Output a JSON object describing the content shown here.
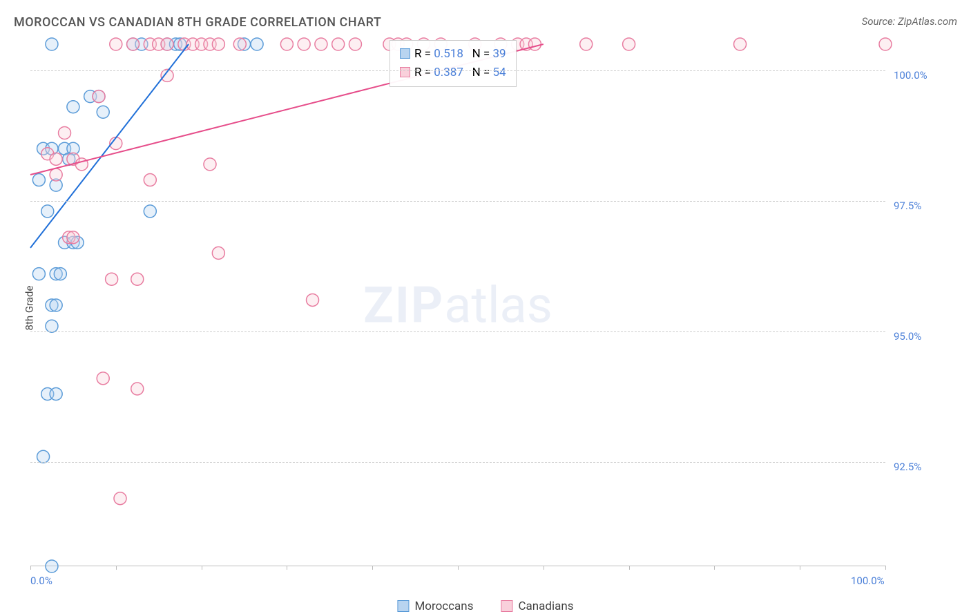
{
  "title": "MOROCCAN VS CANADIAN 8TH GRADE CORRELATION CHART",
  "source": "Source: ZipAtlas.com",
  "watermark_zip": "ZIP",
  "watermark_atlas": "atlas",
  "y_axis_label": "8th Grade",
  "chart": {
    "type": "scatter",
    "background_color": "#ffffff",
    "grid_color": "#cccccc",
    "grid_dash": "4 4",
    "xlim": [
      0,
      100
    ],
    "ylim": [
      90.5,
      100.5
    ],
    "x_ticks": [
      0,
      10,
      20,
      30,
      40,
      50,
      60,
      70,
      80,
      90,
      100
    ],
    "x_tick_labels": {
      "0": "0.0%",
      "100": "100.0%"
    },
    "y_ticks": [
      92.5,
      95.0,
      97.5,
      100.0
    ],
    "y_tick_labels": [
      "92.5%",
      "95.0%",
      "97.5%",
      "100.0%"
    ],
    "marker_radius": 9,
    "marker_fill_opacity": 0.35,
    "marker_stroke_width": 1.5,
    "trend_line_width": 2,
    "label_fontsize": 15,
    "series": [
      {
        "name": "Moroccans",
        "color_fill": "#b8d4f0",
        "color_stroke": "#5a9bd8",
        "trend_color": "#1f6fd8",
        "R": "0.518",
        "N": "39",
        "trend": {
          "x0": 0,
          "y0": 96.6,
          "x1": 18.5,
          "y1": 100.5
        },
        "points": [
          [
            2.5,
            100.5
          ],
          [
            12,
            100.5
          ],
          [
            13,
            100.5
          ],
          [
            16,
            100.5
          ],
          [
            17,
            100.5
          ],
          [
            17.5,
            100.5
          ],
          [
            25,
            100.5
          ],
          [
            26.5,
            100.5
          ],
          [
            7,
            99.5
          ],
          [
            8,
            99.5
          ],
          [
            5,
            99.3
          ],
          [
            8.5,
            99.2
          ],
          [
            1.5,
            98.5
          ],
          [
            2.5,
            98.5
          ],
          [
            4,
            98.5
          ],
          [
            5,
            98.5
          ],
          [
            4.5,
            98.3
          ],
          [
            1,
            97.9
          ],
          [
            3,
            97.8
          ],
          [
            2,
            97.3
          ],
          [
            14,
            97.3
          ],
          [
            4,
            96.7
          ],
          [
            5,
            96.7
          ],
          [
            5.5,
            96.7
          ],
          [
            1,
            96.1
          ],
          [
            3,
            96.1
          ],
          [
            3.5,
            96.1
          ],
          [
            2.5,
            95.5
          ],
          [
            3,
            95.5
          ],
          [
            2.5,
            95.1
          ],
          [
            2,
            93.8
          ],
          [
            3,
            93.8
          ],
          [
            1.5,
            92.6
          ],
          [
            2.5,
            90.5
          ]
        ]
      },
      {
        "name": "Canadians",
        "color_fill": "#f9d0db",
        "color_stroke": "#e87ca0",
        "trend_color": "#e64d8a",
        "R": "0.387",
        "N": "54",
        "trend": {
          "x0": 0,
          "y0": 98.0,
          "x1": 60,
          "y1": 100.5
        },
        "points": [
          [
            10,
            100.5
          ],
          [
            12,
            100.5
          ],
          [
            14,
            100.5
          ],
          [
            15,
            100.5
          ],
          [
            16,
            100.5
          ],
          [
            18,
            100.5
          ],
          [
            19,
            100.5
          ],
          [
            20,
            100.5
          ],
          [
            21,
            100.5
          ],
          [
            22,
            100.5
          ],
          [
            24.5,
            100.5
          ],
          [
            30,
            100.5
          ],
          [
            32,
            100.5
          ],
          [
            34,
            100.5
          ],
          [
            36,
            100.5
          ],
          [
            38,
            100.5
          ],
          [
            42,
            100.5
          ],
          [
            43,
            100.5
          ],
          [
            44,
            100.5
          ],
          [
            46,
            100.5
          ],
          [
            48,
            100.5
          ],
          [
            52,
            100.5
          ],
          [
            55,
            100.5
          ],
          [
            57,
            100.5
          ],
          [
            58,
            100.5
          ],
          [
            59,
            100.5
          ],
          [
            65,
            100.5
          ],
          [
            70,
            100.5
          ],
          [
            83,
            100.5
          ],
          [
            100,
            100.5
          ],
          [
            16,
            99.9
          ],
          [
            8,
            99.5
          ],
          [
            4,
            98.8
          ],
          [
            10,
            98.6
          ],
          [
            21,
            98.2
          ],
          [
            2,
            98.4
          ],
          [
            3,
            98.3
          ],
          [
            5,
            98.3
          ],
          [
            6,
            98.2
          ],
          [
            3,
            98.0
          ],
          [
            14,
            97.9
          ],
          [
            4.5,
            96.8
          ],
          [
            5,
            96.8
          ],
          [
            22,
            96.5
          ],
          [
            9.5,
            96.0
          ],
          [
            12.5,
            96.0
          ],
          [
            33,
            95.6
          ],
          [
            8.5,
            94.1
          ],
          [
            12.5,
            93.9
          ],
          [
            10.5,
            91.8
          ]
        ]
      }
    ]
  },
  "legend": [
    {
      "label": "Moroccans",
      "fill": "#b8d4f0",
      "stroke": "#5a9bd8"
    },
    {
      "label": "Canadians",
      "fill": "#f9d0db",
      "stroke": "#e87ca0"
    }
  ],
  "stats_labels": {
    "R": "R =",
    "N": "N ="
  }
}
